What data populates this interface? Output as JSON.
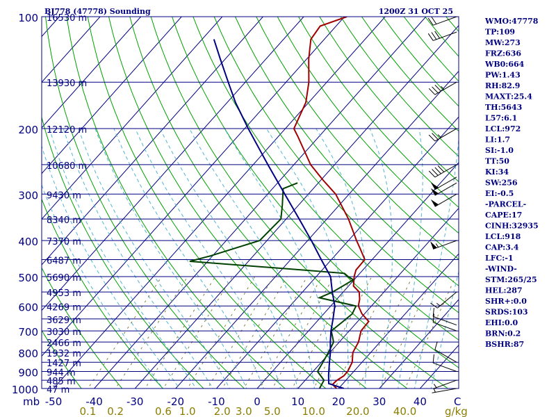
{
  "chart_data": {
    "type": "line",
    "title_left": "BJ778 (47778) Sounding",
    "title_right": "1200Z 31 OCT 25",
    "pressure_levels": [
      {
        "p": 100,
        "label": "100",
        "height": "16530 m"
      },
      {
        "p": 150,
        "label": "",
        "height": "13930 m"
      },
      {
        "p": 200,
        "label": "200",
        "height": "12120 m"
      },
      {
        "p": 250,
        "label": "",
        "height": "10680 m"
      },
      {
        "p": 300,
        "label": "300",
        "height": "9430 m"
      },
      {
        "p": 350,
        "label": "",
        "height": "8340 m"
      },
      {
        "p": 400,
        "label": "400",
        "height": "7370 m"
      },
      {
        "p": 450,
        "label": "",
        "height": "6487 m"
      },
      {
        "p": 500,
        "label": "500",
        "height": "5690 m"
      },
      {
        "p": 550,
        "label": "",
        "height": "4953 m"
      },
      {
        "p": 600,
        "label": "600",
        "height": "4269 m"
      },
      {
        "p": 650,
        "label": "",
        "height": "3629 m"
      },
      {
        "p": 700,
        "label": "700",
        "height": "3030 m"
      },
      {
        "p": 750,
        "label": "",
        "height": "2466 m"
      },
      {
        "p": 800,
        "label": "800",
        "height": "1932 m"
      },
      {
        "p": 850,
        "label": "",
        "height": "1427 m"
      },
      {
        "p": 900,
        "label": "900",
        "height": "944 m"
      },
      {
        "p": 950,
        "label": "",
        "height": "485 m"
      },
      {
        "p": 1000,
        "label": "1000",
        "height": "47 m"
      }
    ],
    "pressure_unit": "mb",
    "temperature_ticks": [
      {
        "t": -50,
        "label": "-50"
      },
      {
        "t": -40,
        "label": "-40"
      },
      {
        "t": -30,
        "label": "-30"
      },
      {
        "t": -20,
        "label": "-20"
      },
      {
        "t": -10,
        "label": "-10"
      },
      {
        "t": 0,
        "label": "0"
      },
      {
        "t": 10,
        "label": "10"
      },
      {
        "t": 20,
        "label": "20"
      },
      {
        "t": 30,
        "label": "30"
      },
      {
        "t": 40,
        "label": "40"
      }
    ],
    "temperature_unit": "C",
    "mixing_ratio_labels": [
      {
        "w": 0.1,
        "label": "0.1"
      },
      {
        "w": 0.2,
        "label": "0.2"
      },
      {
        "w": 0.6,
        "label": "0.6"
      },
      {
        "w": 1.0,
        "label": "1.0"
      },
      {
        "w": 2.0,
        "label": "2.0"
      },
      {
        "w": 3.0,
        "label": "3.0"
      },
      {
        "w": 5.0,
        "label": "5.0"
      },
      {
        "w": 10.0,
        "label": "10.0"
      },
      {
        "w": 20.0,
        "label": "20.0"
      },
      {
        "w": 40.0,
        "label": "40.0"
      }
    ],
    "mixing_ratio_unit": "g/kg",
    "series": [
      {
        "type": "temperature",
        "color": "#a00000",
        "points": [
          {
            "p": 1000,
            "t": 19.5
          },
          {
            "p": 975,
            "t": 17.6
          },
          {
            "p": 950,
            "t": 17.8
          },
          {
            "p": 925,
            "t": 18.5
          },
          {
            "p": 900,
            "t": 18.5
          },
          {
            "p": 850,
            "t": 17.6
          },
          {
            "p": 800,
            "t": 15.6
          },
          {
            "p": 750,
            "t": 14.7
          },
          {
            "p": 700,
            "t": 12.9
          },
          {
            "p": 660,
            "t": 12.7
          },
          {
            "p": 630,
            "t": 9.4
          },
          {
            "p": 600,
            "t": 6.8
          },
          {
            "p": 575,
            "t": 5.6
          },
          {
            "p": 550,
            "t": 3.9
          },
          {
            "p": 530,
            "t": 1.2
          },
          {
            "p": 500,
            "t": -0.7
          },
          {
            "p": 480,
            "t": -1.7
          },
          {
            "p": 450,
            "t": -1.8
          },
          {
            "p": 420,
            "t": -5.4
          },
          {
            "p": 400,
            "t": -8.0
          },
          {
            "p": 350,
            "t": -14.7
          },
          {
            "p": 300,
            "t": -23.3
          },
          {
            "p": 275,
            "t": -29.5
          },
          {
            "p": 250,
            "t": -35.9
          },
          {
            "p": 210,
            "t": -45.2
          },
          {
            "p": 200,
            "t": -47.9
          },
          {
            "p": 170,
            "t": -50.7
          },
          {
            "p": 150,
            "t": -54.4
          },
          {
            "p": 130,
            "t": -59.5
          },
          {
            "p": 115,
            "t": -63.3
          },
          {
            "p": 106,
            "t": -63.9
          },
          {
            "p": 100,
            "t": -59.4
          }
        ]
      },
      {
        "type": "dewpoint",
        "color": "#004000",
        "points": [
          {
            "p": 1000,
            "t": 15.3
          },
          {
            "p": 950,
            "t": 14.6
          },
          {
            "p": 900,
            "t": 11.1
          },
          {
            "p": 850,
            "t": 10.4
          },
          {
            "p": 800,
            "t": 9.6
          },
          {
            "p": 750,
            "t": 8.6
          },
          {
            "p": 700,
            "t": 5.6
          },
          {
            "p": 660,
            "t": 6.4
          },
          {
            "p": 630,
            "t": 7.0
          },
          {
            "p": 600,
            "t": 6.2
          },
          {
            "p": 570,
            "t": -4.6
          },
          {
            "p": 550,
            "t": -2.6
          },
          {
            "p": 510,
            "t": -0.2
          },
          {
            "p": 500,
            "t": -2.2
          },
          {
            "p": 490,
            "t": -3.8
          },
          {
            "p": 480,
            "t": -14.7
          },
          {
            "p": 455,
            "t": -44.4
          },
          {
            "p": 440,
            "t": -40.5
          },
          {
            "p": 400,
            "t": -31.8
          },
          {
            "p": 350,
            "t": -31.3
          },
          {
            "p": 320,
            "t": -34.1
          },
          {
            "p": 290,
            "t": -37.4
          },
          {
            "p": 280,
            "t": -35.1
          }
        ]
      },
      {
        "type": "parcel",
        "color": "#000080",
        "points": [
          {
            "p": 1000,
            "t": 21.3
          },
          {
            "p": 970,
            "t": 16.5
          },
          {
            "p": 920,
            "t": 14.6
          },
          {
            "p": 850,
            "t": 12.0
          },
          {
            "p": 800,
            "t": 10.1
          },
          {
            "p": 750,
            "t": 7.8
          },
          {
            "p": 700,
            "t": 5.5
          },
          {
            "p": 650,
            "t": 3.4
          },
          {
            "p": 600,
            "t": 1.0
          },
          {
            "p": 550,
            "t": -2.7
          },
          {
            "p": 500,
            "t": -6.5
          },
          {
            "p": 450,
            "t": -12.5
          },
          {
            "p": 400,
            "t": -19.1
          },
          {
            "p": 350,
            "t": -26.8
          },
          {
            "p": 300,
            "t": -35.8
          },
          {
            "p": 250,
            "t": -46.4
          },
          {
            "p": 200,
            "t": -59.1
          },
          {
            "p": 170,
            "t": -68.0
          },
          {
            "p": 150,
            "t": -74.2
          },
          {
            "p": 130,
            "t": -81.2
          },
          {
            "p": 115,
            "t": -87.1
          }
        ]
      }
    ],
    "wind_barbs": [
      {
        "p": 1000,
        "dir": 260,
        "spd": 5
      },
      {
        "p": 950,
        "dir": 250,
        "spd": 5
      },
      {
        "p": 900,
        "dir": 290,
        "spd": 10
      },
      {
        "p": 850,
        "dir": 300,
        "spd": 10
      },
      {
        "p": 700,
        "dir": 290,
        "spd": 10
      },
      {
        "p": 675,
        "dir": 290,
        "spd": 10
      },
      {
        "p": 550,
        "dir": 230,
        "spd": 15
      },
      {
        "p": 400,
        "dir": 250,
        "spd": 55
      },
      {
        "p": 300,
        "dir": 240,
        "spd": 50
      },
      {
        "p": 280,
        "dir": 240,
        "spd": 50
      },
      {
        "p": 270,
        "dir": 240,
        "spd": 50
      },
      {
        "p": 250,
        "dir": 240,
        "spd": 40
      },
      {
        "p": 200,
        "dir": 240,
        "spd": 25
      },
      {
        "p": 150,
        "dir": 240,
        "spd": 35
      },
      {
        "p": 110,
        "dir": 250,
        "spd": 30
      },
      {
        "p": 100,
        "dir": 250,
        "spd": 20
      }
    ]
  },
  "indices": [
    "WMO:47778",
    "TP:109",
    "MW:273",
    "FRZ:636",
    "WB0:664",
    "PW:1.43",
    "RH:82.9",
    "MAXT:25.4",
    "TH:5643",
    "L57:6.1",
    "LCL:972",
    "LI:1.7",
    "SI:-1.0",
    "TT:50",
    "KI:34",
    "SW:256",
    "EI:-0.5",
    "-PARCEL-",
    "CAPE:17",
    "CINH:32935",
    "LCL:918",
    "CAP:3.4",
    "LFC:-1",
    "-WIND-",
    "STM:265/25",
    "HEL:287",
    "SHR+:0.0",
    "SRDS:103",
    "EHI:0.0",
    "BRN:0.2",
    "BSHR:87"
  ],
  "colors": {
    "frame": "#000080",
    "isobar": "#000080",
    "isotherm": "#000080",
    "dry_adiabat": "#00a000",
    "moist_adiabat": "#50b4d2",
    "mixing_ratio": "#808040",
    "temperature": "#a00000",
    "dewpoint": "#004000",
    "parcel": "#000080",
    "mixing_label": "#8b7d00"
  }
}
